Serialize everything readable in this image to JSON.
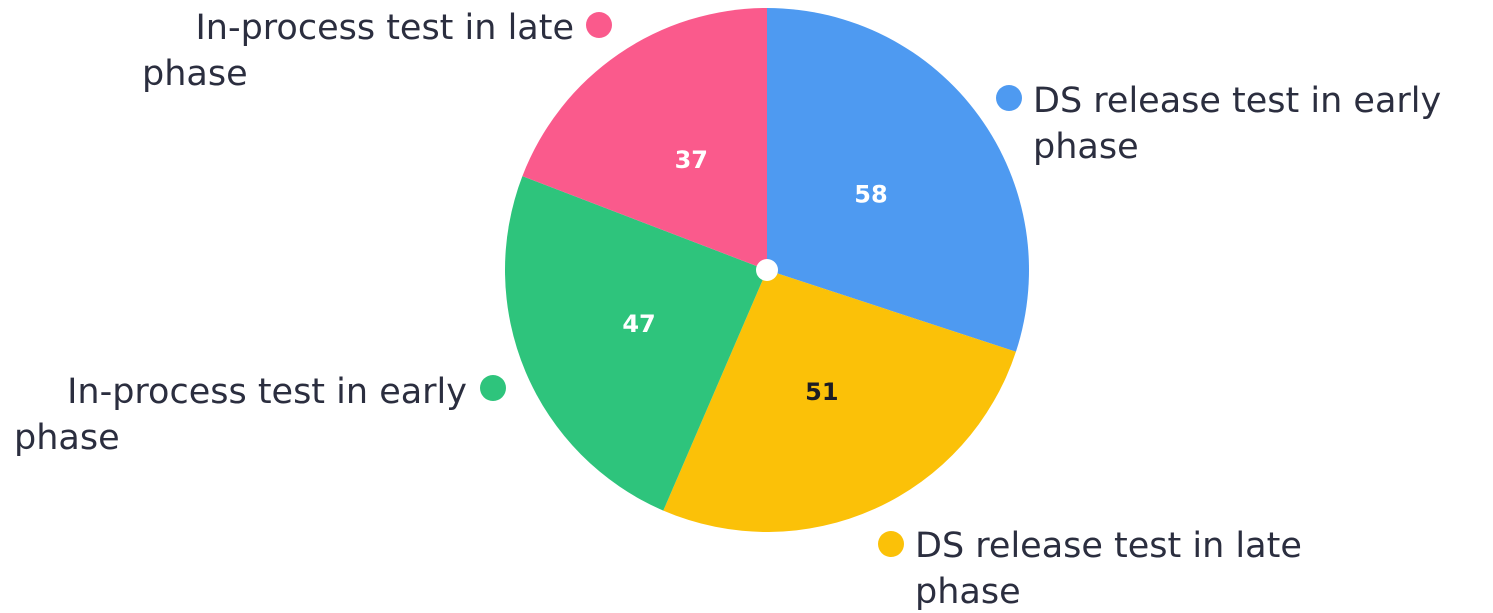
{
  "chart_data": {
    "type": "pie",
    "title": "",
    "slices": [
      {
        "label_lines": [
          "DS release test in early",
          "phase"
        ],
        "value": 58,
        "color": "#4e9af1",
        "value_color": "#ffffff"
      },
      {
        "label_lines": [
          "DS release test in late",
          "phase"
        ],
        "value": 51,
        "color": "#fbc108",
        "value_color": "#1c1c24"
      },
      {
        "label_lines": [
          "In-process test in early",
          "phase"
        ],
        "value": 47,
        "color": "#2ec47c",
        "value_color": "#ffffff"
      },
      {
        "label_lines": [
          "In-process test in late",
          "phase"
        ],
        "value": 37,
        "color": "#fa5a8c",
        "value_color": "#ffffff"
      }
    ],
    "center_dot_color": "#ffffff"
  }
}
